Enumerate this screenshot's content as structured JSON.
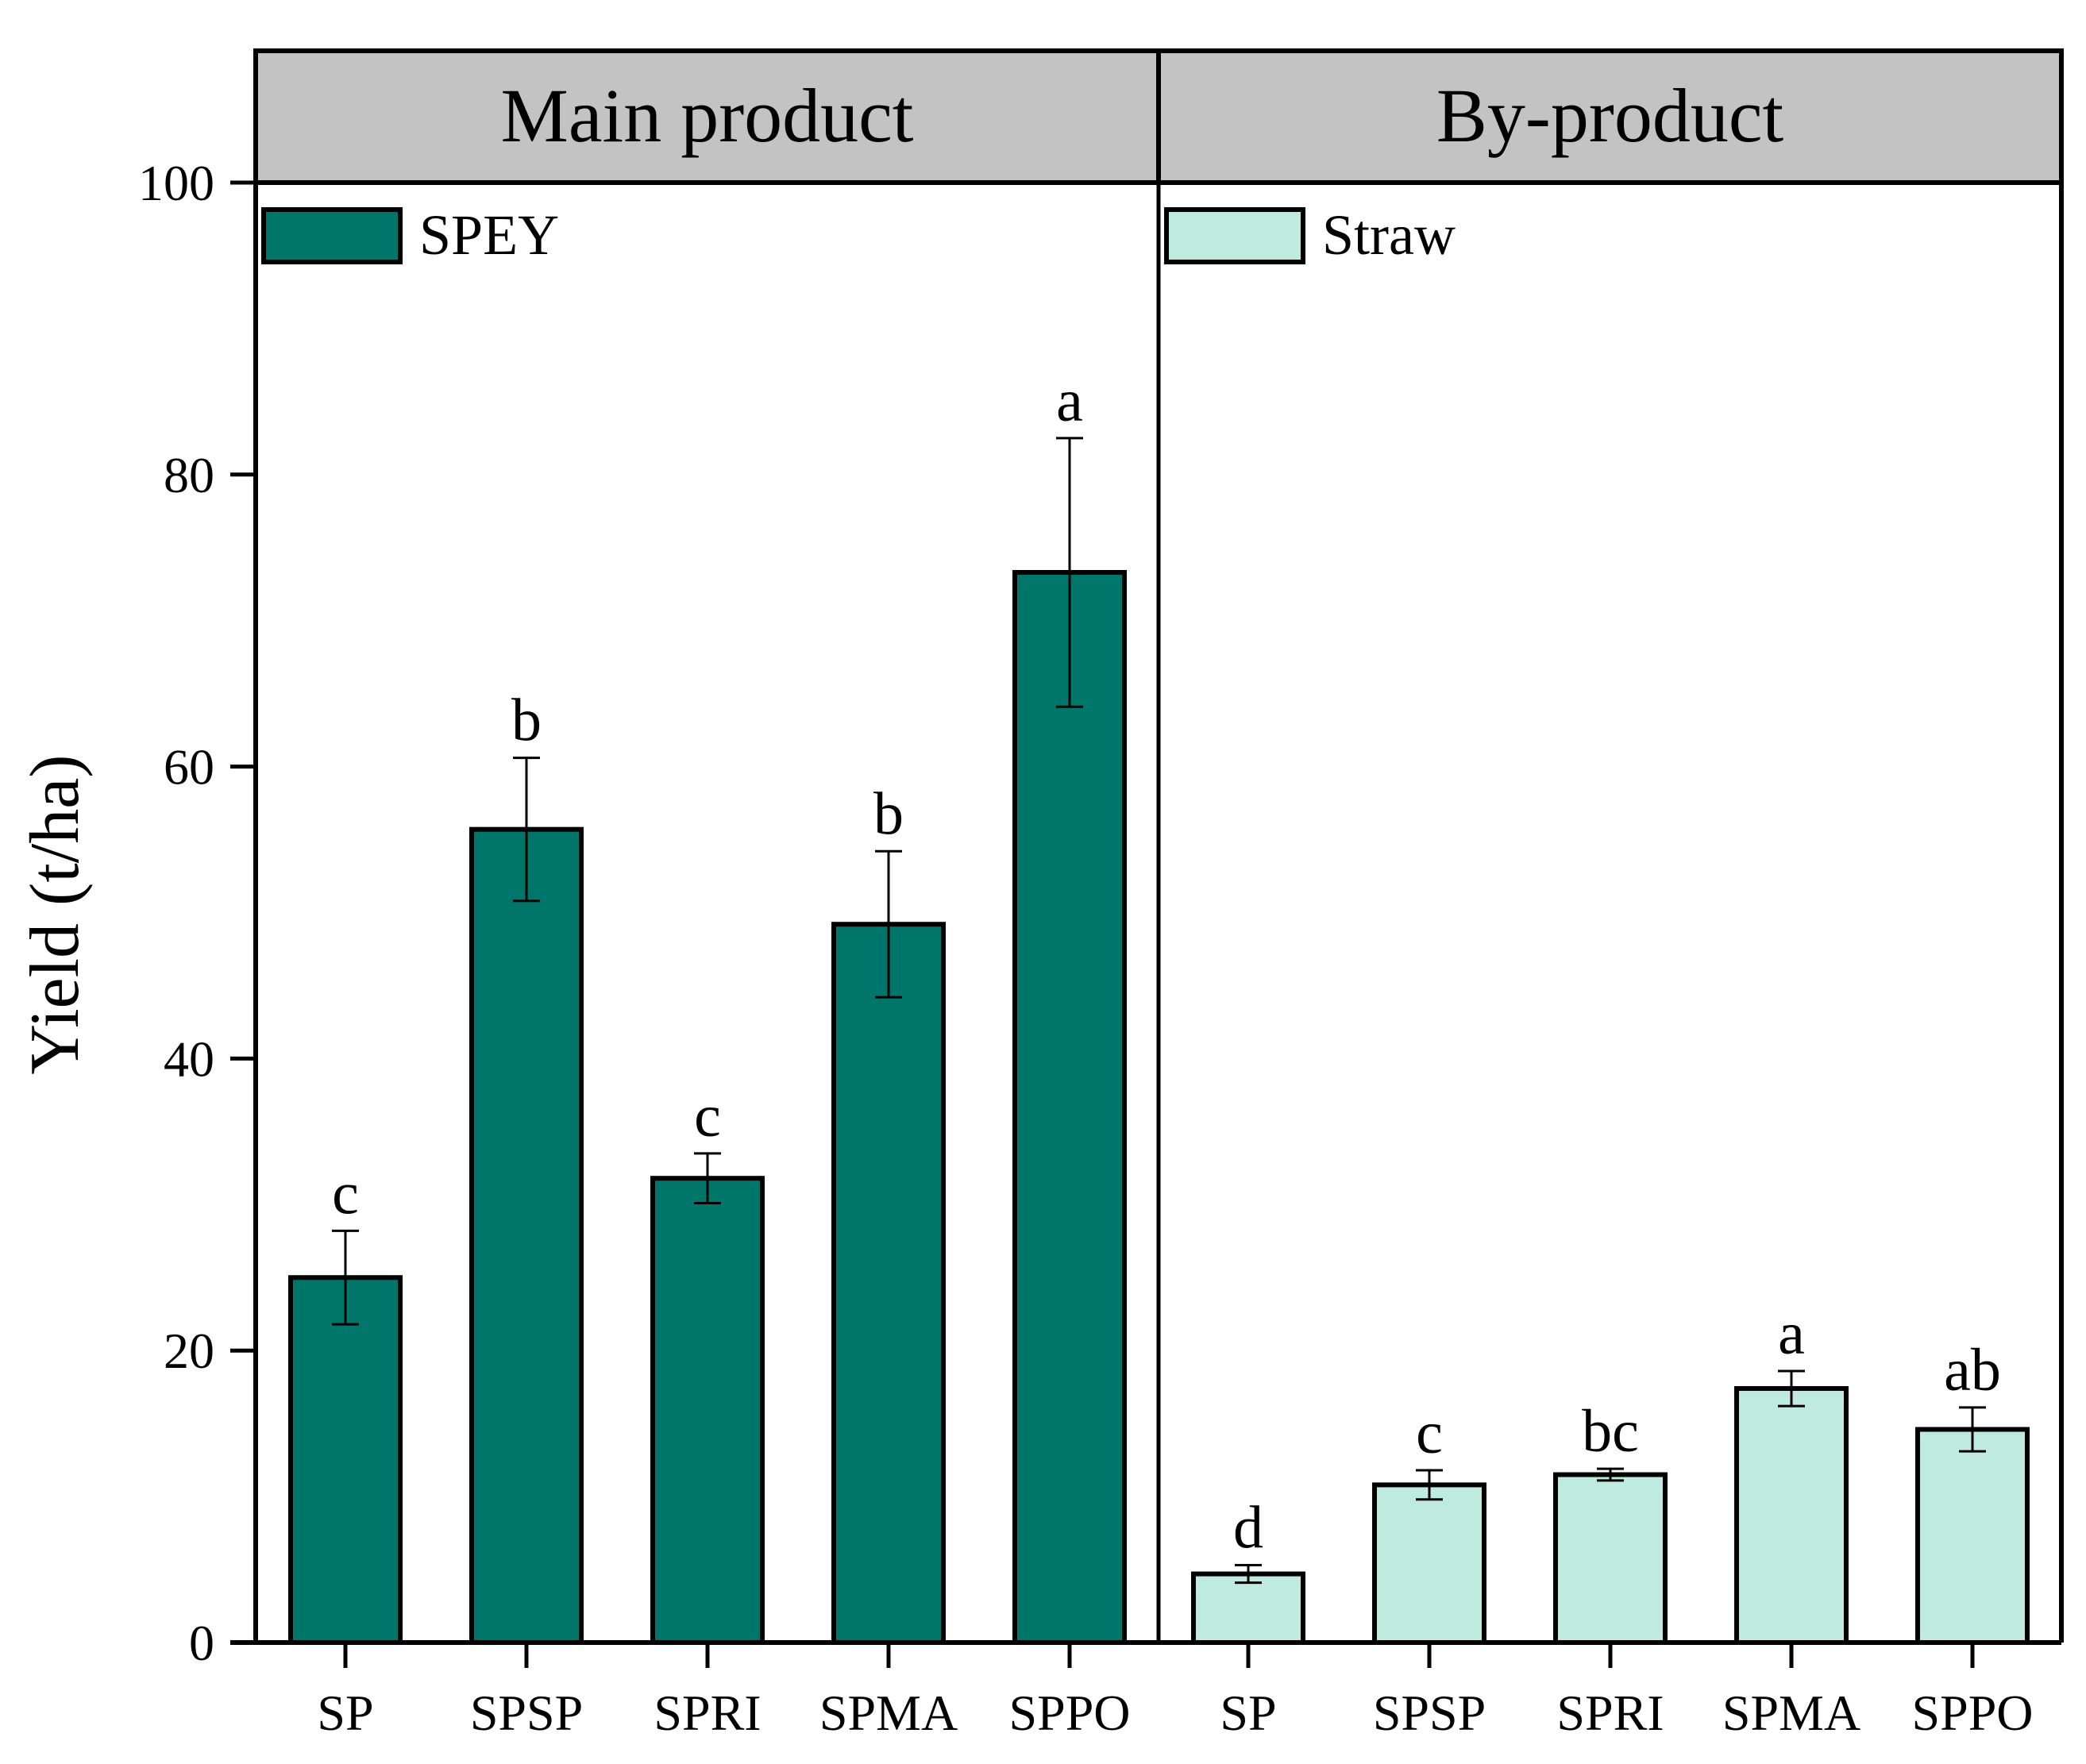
{
  "chart_data": {
    "type": "bar",
    "ylabel": "Yield (t/ha)",
    "ylim": [
      0,
      110
    ],
    "yticks": [
      0,
      20,
      40,
      60,
      80,
      100
    ],
    "grid": false,
    "panels": [
      {
        "title": "Main product",
        "legend": "SPEY",
        "legend_position": "top-left",
        "color": "#00756a",
        "categories": [
          "SP",
          "SPSP",
          "SPRI",
          "SPMA",
          "SPPO"
        ],
        "values": [
          25,
          55.7,
          31.8,
          49.2,
          73.3
        ],
        "errors": [
          3.2,
          4.9,
          1.7,
          5.0,
          9.2
        ],
        "significance": [
          "c",
          "b",
          "c",
          "b",
          "a"
        ]
      },
      {
        "title": "By-product",
        "legend": "Straw",
        "legend_position": "top-left",
        "color": "#bfeae0",
        "categories": [
          "SP",
          "SPSP",
          "SPRI",
          "SPMA",
          "SPPO"
        ],
        "values": [
          4.7,
          10.8,
          11.5,
          17.4,
          14.6
        ],
        "errors": [
          0.6,
          1.0,
          0.4,
          1.2,
          1.5
        ],
        "significance": [
          "d",
          "c",
          "bc",
          "a",
          "ab"
        ]
      }
    ]
  }
}
